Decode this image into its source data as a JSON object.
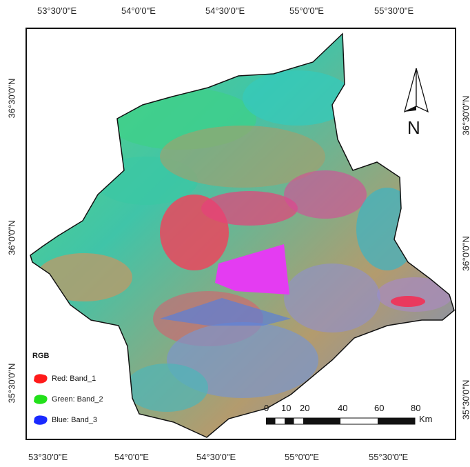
{
  "map": {
    "grid_lon_labels": [
      "53°30'0\"E",
      "54°0'0\"E",
      "54°30'0\"E",
      "55°0'0\"E",
      "55°30'0\"E"
    ],
    "grid_lat_labels_left": [
      "36°30'0\"N",
      "36°0'0\"N",
      "35°30'0\"N"
    ],
    "grid_lat_labels_right": [
      "36°30'0\"N",
      "36°0'0\"N",
      "35°30'0\"N"
    ],
    "north_arrow_label": "N",
    "legend": {
      "title": "RGB",
      "items": [
        {
          "label": "Red:   Band_1",
          "color": "#ff1a1a"
        },
        {
          "label": "Green: Band_2",
          "color": "#22e01a"
        },
        {
          "label": "Blue:   Band_3",
          "color": "#1a2aff"
        }
      ]
    },
    "scale_bar": {
      "labels": [
        "0",
        "10",
        "20",
        "40",
        "60",
        "80"
      ],
      "unit": "Km"
    },
    "colors": {
      "teal": "#3cc9a8",
      "green": "#53d86a",
      "tan": "#b99b6a",
      "red": "#f2405a",
      "magenta": "#e83af0",
      "blue": "#5a7fd8"
    }
  }
}
